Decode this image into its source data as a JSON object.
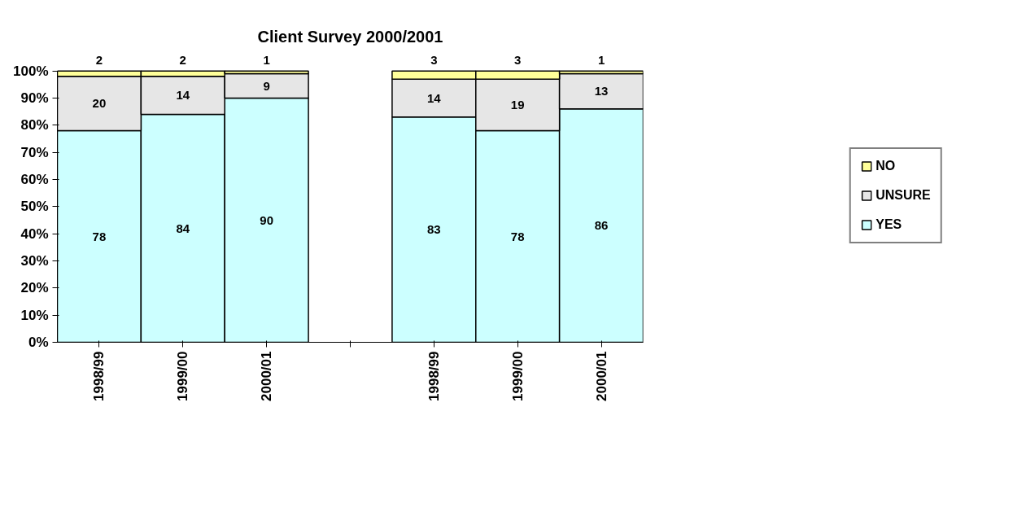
{
  "chart_data": {
    "type": "bar",
    "title": "Client Survey 2000/2001",
    "stacked": true,
    "data_labels": true,
    "legend": "right",
    "grid": false,
    "categories": [
      "1998/99",
      "1999/00",
      "2000/01",
      null,
      "1998/99",
      "1999/00",
      "2000/01"
    ],
    "ylim": [
      0,
      100
    ],
    "yticks": [
      {
        "value": 0,
        "label": "0%"
      },
      {
        "value": 10,
        "label": "10%"
      },
      {
        "value": 20,
        "label": "20%"
      },
      {
        "value": 30,
        "label": "30%"
      },
      {
        "value": 40,
        "label": "40%"
      },
      {
        "value": 50,
        "label": "50%"
      },
      {
        "value": 60,
        "label": "60%"
      },
      {
        "value": 70,
        "label": "70%"
      },
      {
        "value": 80,
        "label": "80%"
      },
      {
        "value": 90,
        "label": "90%"
      },
      {
        "value": 100,
        "label": "100%"
      }
    ],
    "series": [
      {
        "name": "YES",
        "color": "#ccffff",
        "values": [
          78,
          84,
          90,
          null,
          83,
          78,
          86
        ]
      },
      {
        "name": "UNSURE",
        "color": "#e6e6e6",
        "values": [
          20,
          14,
          9,
          null,
          14,
          19,
          13
        ]
      },
      {
        "name": "NO",
        "color": "#ffff99",
        "values": [
          2,
          2,
          1,
          null,
          3,
          3,
          1
        ]
      }
    ]
  }
}
